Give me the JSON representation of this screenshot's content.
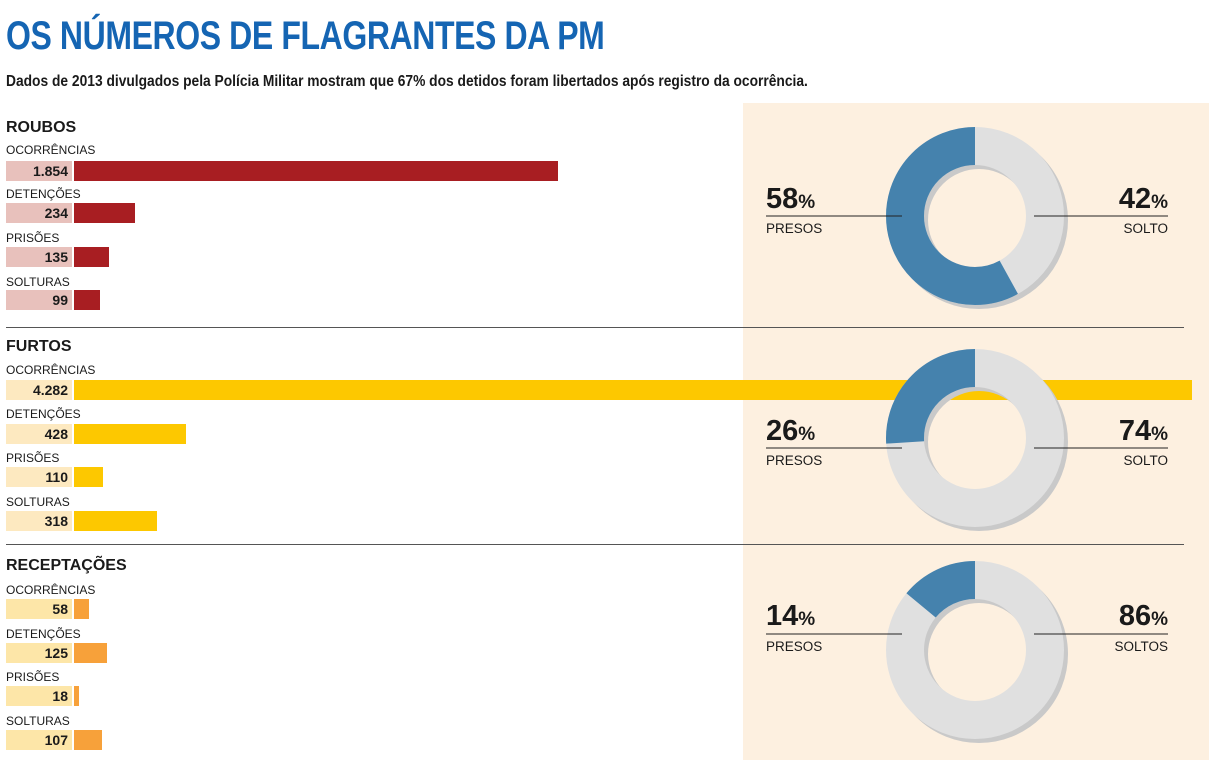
{
  "header": {
    "title": "OS NÚMEROS DE FLAGRANTES DA PM",
    "subtitle": "Dados de 2013 divulgados pela Polícia Militar mostram que 67% dos detidos foram libertados após registro da ocorrência."
  },
  "colors": {
    "title": "#1565b3",
    "panel_background": "#fdf0e0",
    "donut_presos": "#4582ad",
    "donut_soltos": "#e0e0e0",
    "donut_shadow": "#c9c9c9"
  },
  "chart_data": [
    {
      "type": "bar",
      "title": "ROUBOS",
      "categories": [
        "OCORRÊNCIAS",
        "DETENÇÕES",
        "PRISÕES",
        "SOLTURAS"
      ],
      "values": [
        1854,
        234,
        135,
        99
      ],
      "value_labels": [
        "1.854",
        "234",
        "135",
        "99"
      ],
      "bar_color": "#a81e22",
      "label_box_color": "#e8c1bc"
    },
    {
      "type": "bar",
      "title": "FURTOS",
      "categories": [
        "OCORRÊNCIAS",
        "DETENÇÕES",
        "PRISÕES",
        "SOLTURAS"
      ],
      "values": [
        4282,
        428,
        110,
        318
      ],
      "value_labels": [
        "4.282",
        "428",
        "110",
        "318"
      ],
      "bar_color": "#fdc800",
      "label_box_color": "#fde9c0"
    },
    {
      "type": "bar",
      "title": "RECEPTAÇÕES",
      "categories": [
        "OCORRÊNCIAS",
        "DETENÇÕES",
        "PRISÕES",
        "SOLTURAS"
      ],
      "values": [
        58,
        125,
        18,
        107
      ],
      "value_labels": [
        "58",
        "125",
        "18",
        "107"
      ],
      "bar_color": "#f7a13a",
      "label_box_color": "#fde6a8"
    },
    {
      "type": "pie",
      "categories": [
        "PRESOS",
        "SOLTO"
      ],
      "values": [
        58,
        42
      ],
      "value_labels": [
        "58",
        "42"
      ]
    },
    {
      "type": "pie",
      "categories": [
        "PRESOS",
        "SOLTO"
      ],
      "values": [
        26,
        74
      ],
      "value_labels": [
        "26",
        "74"
      ]
    },
    {
      "type": "pie",
      "categories": [
        "PRESOS",
        "SOLTOS"
      ],
      "values": [
        14,
        86
      ],
      "value_labels": [
        "14",
        "86"
      ]
    }
  ],
  "percent_symbol": "%"
}
